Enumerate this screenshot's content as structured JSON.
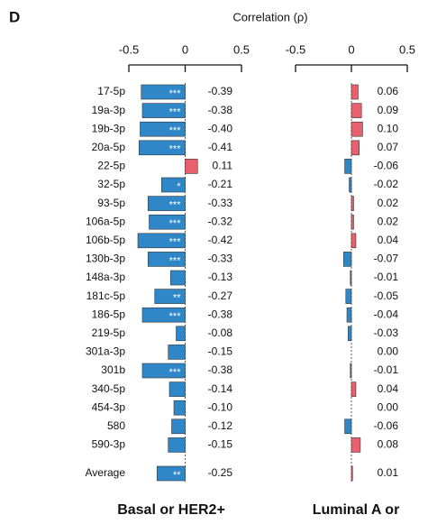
{
  "panel_label": "D",
  "x_axis_title": "Correlation (ρ)",
  "chart_data": [
    {
      "type": "bar",
      "orientation": "horizontal",
      "title": "Basal or HER2+",
      "categories": [
        "17-5p",
        "19a-3p",
        "19b-3p",
        "20a-5p",
        "22-5p",
        "32-5p",
        "93-5p",
        "106a-5p",
        "106b-5p",
        "130b-3p",
        "148a-3p",
        "181c-5p",
        "186-5p",
        "219-5p",
        "301a-3p",
        "301b",
        "340-5p",
        "454-3p",
        "580",
        "590-3p",
        "Average"
      ],
      "values": [
        -0.39,
        -0.38,
        -0.4,
        -0.41,
        0.11,
        -0.21,
        -0.33,
        -0.32,
        -0.42,
        -0.33,
        -0.13,
        -0.27,
        -0.38,
        -0.08,
        -0.15,
        -0.38,
        -0.14,
        -0.1,
        -0.12,
        -0.15,
        -0.25
      ],
      "value_labels": [
        "-0.39",
        "-0.38",
        "-0.40",
        "-0.41",
        "0.11",
        "-0.21",
        "-0.33",
        "-0.32",
        "-0.42",
        "-0.33",
        "-0.13",
        "-0.27",
        "-0.38",
        "-0.08",
        "-0.15",
        "-0.38",
        "-0.14",
        "-0.10",
        "-0.12",
        "-0.15",
        "-0.25"
      ],
      "annotations": [
        "***",
        "***",
        "***",
        "***",
        null,
        "*",
        "***",
        "***",
        "***",
        "***",
        null,
        "**",
        "***",
        null,
        null,
        "***",
        null,
        null,
        null,
        null,
        "**"
      ],
      "xlim": [
        -0.5,
        0.5
      ],
      "xticks": [
        -0.5,
        0,
        0.5
      ],
      "negative_color": "#2f87c8",
      "positive_color": "#e8606b"
    },
    {
      "type": "bar",
      "orientation": "horizontal",
      "title": "Luminal A or",
      "values": [
        0.06,
        0.09,
        0.1,
        0.07,
        -0.06,
        -0.02,
        0.02,
        0.02,
        0.04,
        -0.07,
        -0.01,
        -0.05,
        -0.04,
        -0.03,
        0.0,
        -0.01,
        0.04,
        0.0,
        -0.06,
        0.08,
        0.01
      ],
      "value_labels": [
        "0.06",
        "0.09",
        "0.10",
        "0.07",
        "-0.06",
        "-0.02",
        "0.02",
        "0.02",
        "0.04",
        "-0.07",
        "-0.01",
        "-0.05",
        "-0.04",
        "-0.03",
        "0.00",
        "-0.01",
        "0.04",
        "0.00",
        "-0.06",
        "0.08",
        "0.01"
      ],
      "xlim": [
        -0.5,
        0.5
      ],
      "xticks": [
        -0.5,
        0,
        0.5
      ],
      "negative_color": "#2f87c8",
      "positive_color": "#e8606b"
    }
  ]
}
